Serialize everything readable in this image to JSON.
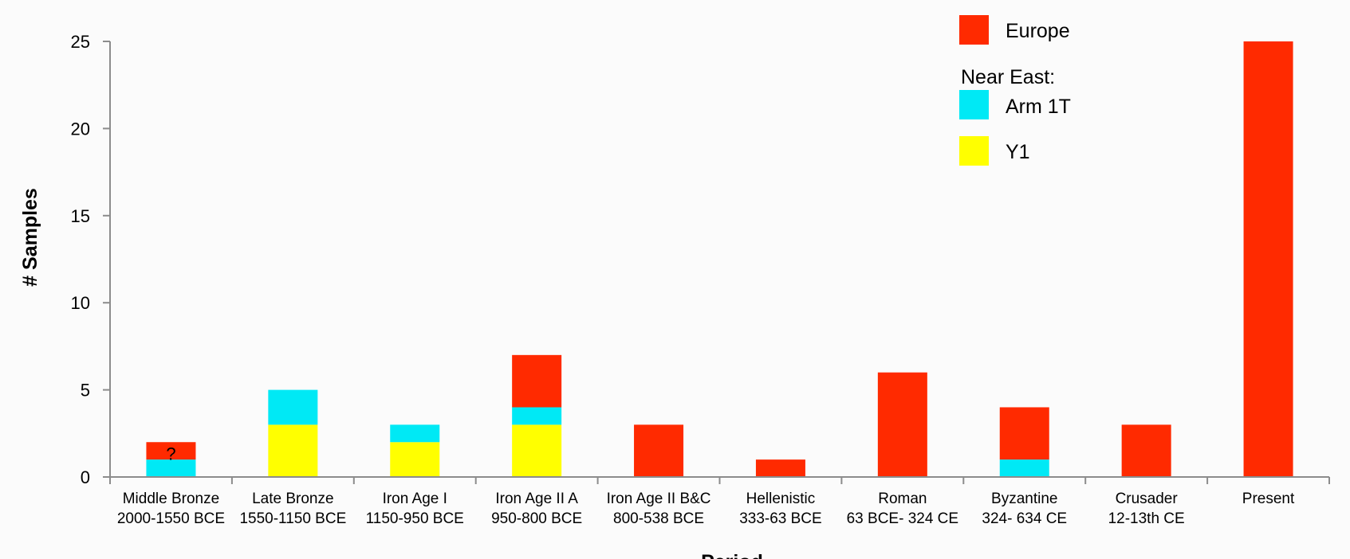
{
  "chart_data": {
    "type": "bar",
    "stacked": true,
    "ylabel": "# Samples",
    "xlabel": "Period",
    "ylim": [
      0,
      25
    ],
    "yticks": [
      "0",
      "5",
      "10",
      "15",
      "20",
      "25"
    ],
    "categories": [
      {
        "line1": "Middle Bronze",
        "line2": "2000-1550 BCE"
      },
      {
        "line1": "Late Bronze",
        "line2": "1550-1150 BCE"
      },
      {
        "line1": "Iron Age I",
        "line2": "1150-950 BCE"
      },
      {
        "line1": "Iron Age II A",
        "line2": "950-800 BCE"
      },
      {
        "line1": "Iron Age II B&C",
        "line2": "800-538 BCE"
      },
      {
        "line1": "Hellenistic",
        "line2": "333-63 BCE"
      },
      {
        "line1": "Roman",
        "line2": "63 BCE- 324 CE"
      },
      {
        "line1": "Byzantine",
        "line2": "324- 634 CE"
      },
      {
        "line1": "Crusader",
        "line2": "12-13th CE"
      },
      {
        "line1": "Present",
        "line2": ""
      }
    ],
    "series": [
      {
        "name": "Y1",
        "color": "#ffff00",
        "values": [
          0,
          3,
          2,
          3,
          0,
          0,
          0,
          0,
          0,
          0
        ]
      },
      {
        "name": "Arm 1T",
        "color": "#00e9f5",
        "values": [
          1,
          2,
          1,
          1,
          0,
          0,
          0,
          1,
          0,
          0
        ]
      },
      {
        "name": "Europe",
        "color": "#ff2a00",
        "values": [
          1,
          0,
          0,
          3,
          3,
          1,
          6,
          3,
          3,
          25
        ]
      }
    ],
    "legend": {
      "position": "top-right",
      "europe_label": "Europe",
      "group_label": "Near East:",
      "arm_label": "Arm 1T",
      "y1_label": "Y1"
    },
    "annotation": "?",
    "grid": false
  }
}
